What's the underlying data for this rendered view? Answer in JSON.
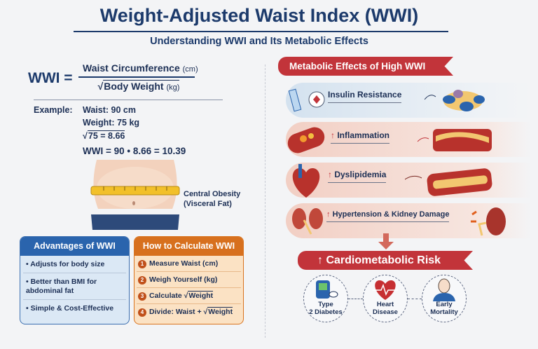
{
  "header": {
    "title": "Weight-Adjusted Waist Index (WWI)",
    "subtitle": "Understanding WWI and Its Metabolic Effects"
  },
  "formula": {
    "lhs": "WWI =",
    "numerator": "Waist Circumference",
    "numerator_unit": "(cm)",
    "denominator": "Body Weight",
    "denominator_unit": "(kg)"
  },
  "example": {
    "label": "Example:",
    "lines": [
      "Waist: 90 cm",
      "Weight: 75 kg",
      "75 = 8.66",
      "WWI = 90 • 8.66 = 10.39"
    ]
  },
  "illustration": {
    "label_line1": "Central Obesity",
    "label_line2": "(Visceral Fat)"
  },
  "advantages": {
    "title": "Advantages of WWI",
    "items": [
      "Adjusts for body size",
      "Better than BMI for abdominal fat",
      "Simple & Cost-Effective"
    ]
  },
  "how_to": {
    "title": "How to Calculate WWI",
    "steps": [
      {
        "n": "1",
        "text": "Measure Waist (cm)"
      },
      {
        "n": "2",
        "text": "Weigh Yourself (kg)"
      },
      {
        "n": "3",
        "text": "Calculate",
        "sqrt": "Weight"
      },
      {
        "n": "4",
        "text": "Divide: Waist +",
        "sqrt": "Weight"
      }
    ]
  },
  "effects": {
    "title": "Metabolic Effects of High WWI",
    "items": [
      {
        "label": "Insulin Resistance",
        "arrow": "",
        "icon": "syringe-icon"
      },
      {
        "label": "Inflammation",
        "arrow": "↑",
        "icon": "artery-icon"
      },
      {
        "label": "Dyslipidemia",
        "arrow": "↑",
        "icon": "heart-icon"
      },
      {
        "label": "Hypertension & Kidney Damage",
        "arrow": "↑",
        "icon": "kidney-icon"
      }
    ]
  },
  "risk": {
    "title": "Cardiometabolic Risk",
    "arrow": "↑",
    "outcomes": [
      {
        "line1": "Type",
        "line2": "2 Diabetes",
        "icon": "glucose-meter-icon"
      },
      {
        "line1": "Heart",
        "line2": "Disease",
        "icon": "heartbeat-icon"
      },
      {
        "line1": "Early",
        "line2": "Mortality",
        "icon": "person-icon"
      }
    ]
  },
  "colors": {
    "navy": "#1c3a6b",
    "red": "#c2343a",
    "blue": "#2a64ad",
    "orange": "#d7701e"
  }
}
